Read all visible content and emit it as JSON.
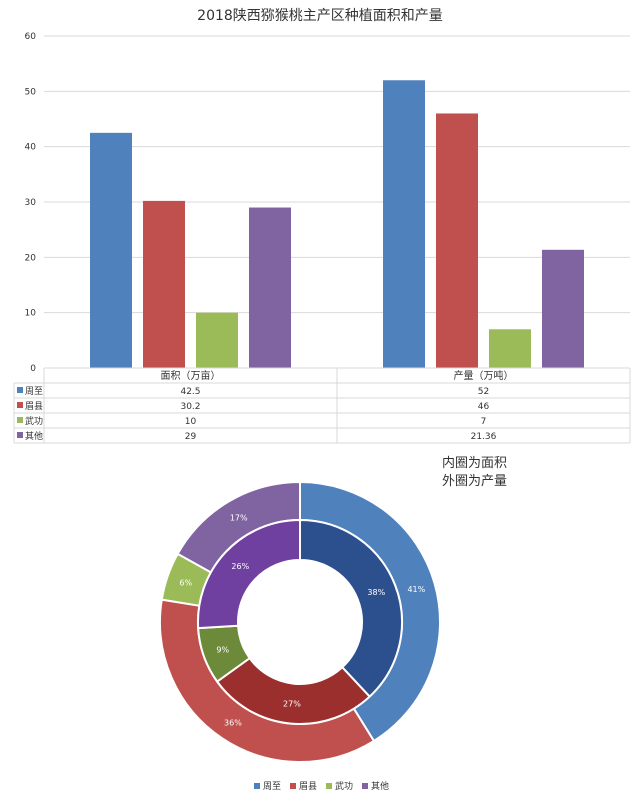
{
  "chart_data": [
    {
      "type": "bar",
      "title": "2018陕西猕猴桃主产区种植面积和产量",
      "categories": [
        "面积（万亩）",
        "产量（万吨）"
      ],
      "series": [
        {
          "name": "周至",
          "values": [
            42.5,
            52
          ],
          "labels": [
            "42.5",
            "52"
          ]
        },
        {
          "name": "眉县",
          "values": [
            30.2,
            46
          ],
          "labels": [
            "30.2",
            "46"
          ]
        },
        {
          "name": "武功",
          "values": [
            10,
            7
          ],
          "labels": [
            "10",
            "7"
          ]
        },
        {
          "name": "其他",
          "values": [
            29,
            21.36
          ],
          "labels": [
            "29",
            "21.36"
          ]
        }
      ],
      "ylim": [
        0,
        60
      ],
      "yticks": [
        "0",
        "10",
        "20",
        "30",
        "40",
        "50",
        "60"
      ],
      "grid": true,
      "data_table": true
    },
    {
      "type": "pie",
      "subtype": "double-donut",
      "note_lines": [
        "内圈为面积",
        "外圈为产量"
      ],
      "inner": {
        "categories": [
          "周至",
          "眉县",
          "武功",
          "其他"
        ],
        "values": [
          42.5,
          30.2,
          10,
          29
        ],
        "percent_labels": [
          "38%",
          "27%",
          "9%",
          "26%"
        ]
      },
      "outer": {
        "categories": [
          "周至",
          "眉县",
          "武功",
          "其他"
        ],
        "values": [
          52,
          46,
          7,
          21.36
        ],
        "percent_labels": [
          "41%",
          "36%",
          "6%",
          "17%"
        ]
      },
      "legend": [
        "周至",
        "眉县",
        "武功",
        "其他"
      ],
      "legend_position": "bottom"
    }
  ],
  "colors": {
    "bar": [
      "#4f81bd",
      "#c0504d",
      "#9bbb59",
      "#8064a2"
    ],
    "inner": [
      "#2c4f8e",
      "#9a2f2d",
      "#6d8a3b",
      "#7040a0"
    ],
    "outer": [
      "#4f81bd",
      "#c0504d",
      "#9bbb59",
      "#8064a2"
    ],
    "grid": "#d9d9d9"
  }
}
